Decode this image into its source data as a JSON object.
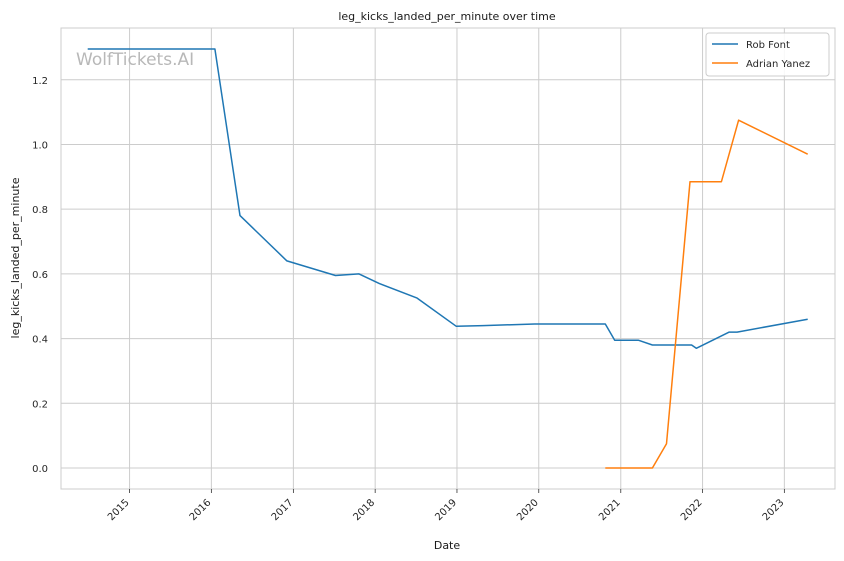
{
  "chart_data": {
    "type": "line",
    "title": "leg_kicks_landed_per_minute over time",
    "xlabel": "Date",
    "ylabel": "leg_kicks_landed_per_minute",
    "watermark": "WolfTickets.AI",
    "xlim": [
      "2014-03-01",
      "2023-08-15"
    ],
    "ylim": [
      -0.065,
      1.36
    ],
    "x_ticks": [
      "2015-01-01",
      "2016-01-01",
      "2017-01-01",
      "2018-01-01",
      "2019-01-01",
      "2020-01-01",
      "2021-01-01",
      "2022-01-01",
      "2023-01-01"
    ],
    "x_tick_labels": [
      "2015",
      "2016",
      "2017",
      "2018",
      "2019",
      "2020",
      "2021",
      "2022",
      "2023"
    ],
    "y_ticks": [
      0.0,
      0.2,
      0.4,
      0.6,
      0.8,
      1.0,
      1.2
    ],
    "y_tick_labels": [
      "0.0",
      "0.2",
      "0.4",
      "0.6",
      "0.8",
      "1.0",
      "1.2"
    ],
    "grid": true,
    "legend_position": "top-right",
    "series": [
      {
        "name": "Rob Font",
        "color": "#1f77b4",
        "x": [
          "2014-06-28",
          "2016-01-17",
          "2016-05-08",
          "2016-12-03",
          "2017-07-08",
          "2017-10-21",
          "2018-01-20",
          "2018-07-07",
          "2018-12-29",
          "2019-04-27",
          "2019-12-14",
          "2020-10-24",
          "2020-12-05",
          "2021-03-20",
          "2021-05-22",
          "2021-11-13",
          "2021-12-04",
          "2022-04-30",
          "2022-06-04",
          "2023-04-15"
        ],
        "values": [
          1.295,
          1.295,
          0.78,
          0.64,
          0.595,
          0.6,
          0.57,
          0.525,
          0.438,
          0.44,
          0.445,
          0.445,
          0.395,
          0.395,
          0.38,
          0.38,
          0.37,
          0.42,
          0.42,
          0.46
        ]
      },
      {
        "name": "Adrian Yanez",
        "color": "#ff7f0e",
        "x": [
          "2020-10-24",
          "2021-05-22",
          "2021-07-24",
          "2021-11-06",
          "2022-03-26",
          "2022-06-11",
          "2023-04-15"
        ],
        "values": [
          0.0,
          0.0,
          0.075,
          0.885,
          0.885,
          1.075,
          0.97
        ]
      }
    ]
  }
}
